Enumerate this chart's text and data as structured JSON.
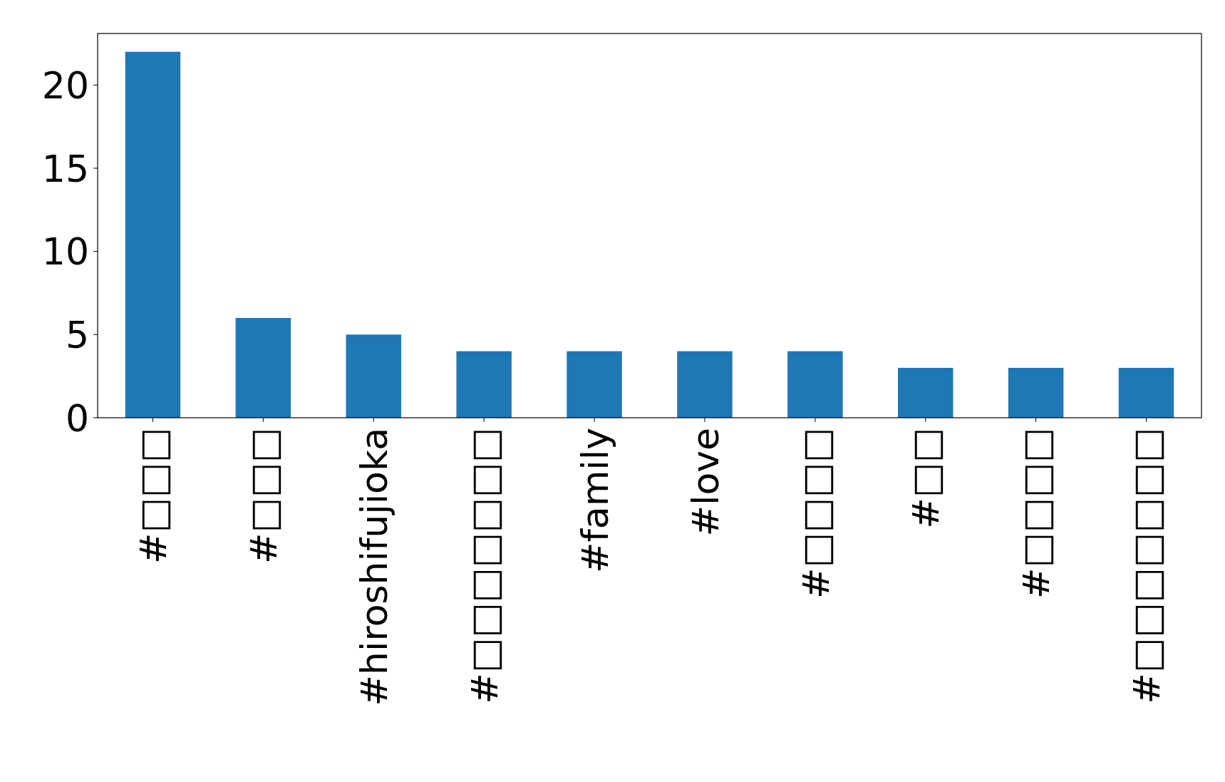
{
  "chart_data": {
    "type": "bar",
    "categories": [
      "#□□□",
      "#□□□",
      "#hiroshifujioka",
      "#□□□□□□□",
      "#family",
      "#love",
      "#□□□□",
      "#□□",
      "#□□□□",
      "#□□□□□□□"
    ],
    "values": [
      22,
      6,
      5,
      4,
      4,
      4,
      4,
      3,
      3,
      3
    ],
    "color": "#1f77b4",
    "ylim": [
      0,
      23.1
    ],
    "yticks": [
      0,
      5,
      10,
      15,
      20
    ],
    "grid": false
  }
}
